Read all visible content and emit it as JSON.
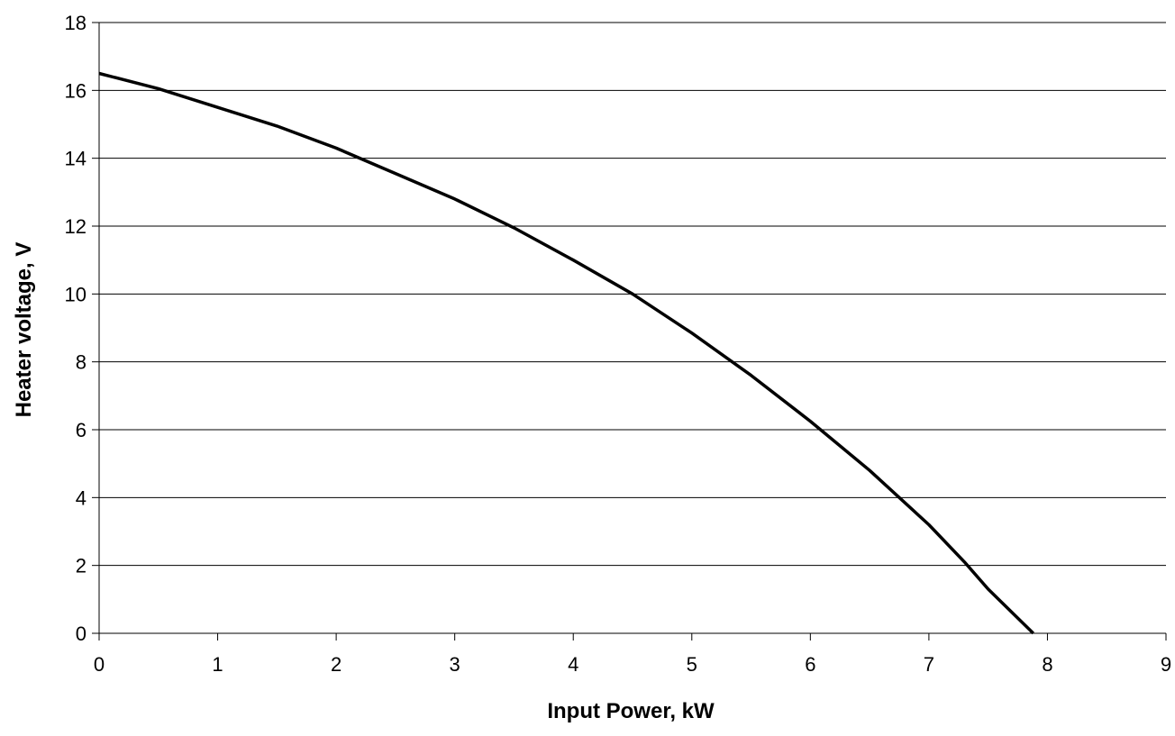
{
  "chart_data": {
    "type": "line",
    "title": "",
    "xlabel": "Input Power, kW",
    "ylabel": "Heater voltage, V",
    "xlim": [
      0,
      9
    ],
    "ylim": [
      0,
      18
    ],
    "xticks": [
      "0",
      "1",
      "2",
      "3",
      "4",
      "5",
      "6",
      "7",
      "8",
      "9"
    ],
    "yticks": [
      "0",
      "2",
      "4",
      "6",
      "8",
      "10",
      "12",
      "14",
      "16",
      "18"
    ],
    "grid": "horizontal",
    "legend": "none",
    "colors": {
      "line": "#000000",
      "grid": "#000000",
      "axis": "#000000",
      "background": "#ffffff"
    },
    "series": [
      {
        "x": [
          0,
          0.5,
          1,
          1.5,
          2,
          2.5,
          3,
          3.5,
          4,
          4.5,
          5,
          5.5,
          6,
          6.5,
          7,
          7.3,
          7.5,
          7.88
        ],
        "y": [
          16.5,
          16.05,
          15.5,
          14.95,
          14.3,
          13.55,
          12.8,
          11.95,
          11.0,
          10.0,
          8.85,
          7.6,
          6.25,
          4.8,
          3.2,
          2.1,
          1.3,
          0.0
        ]
      }
    ]
  }
}
